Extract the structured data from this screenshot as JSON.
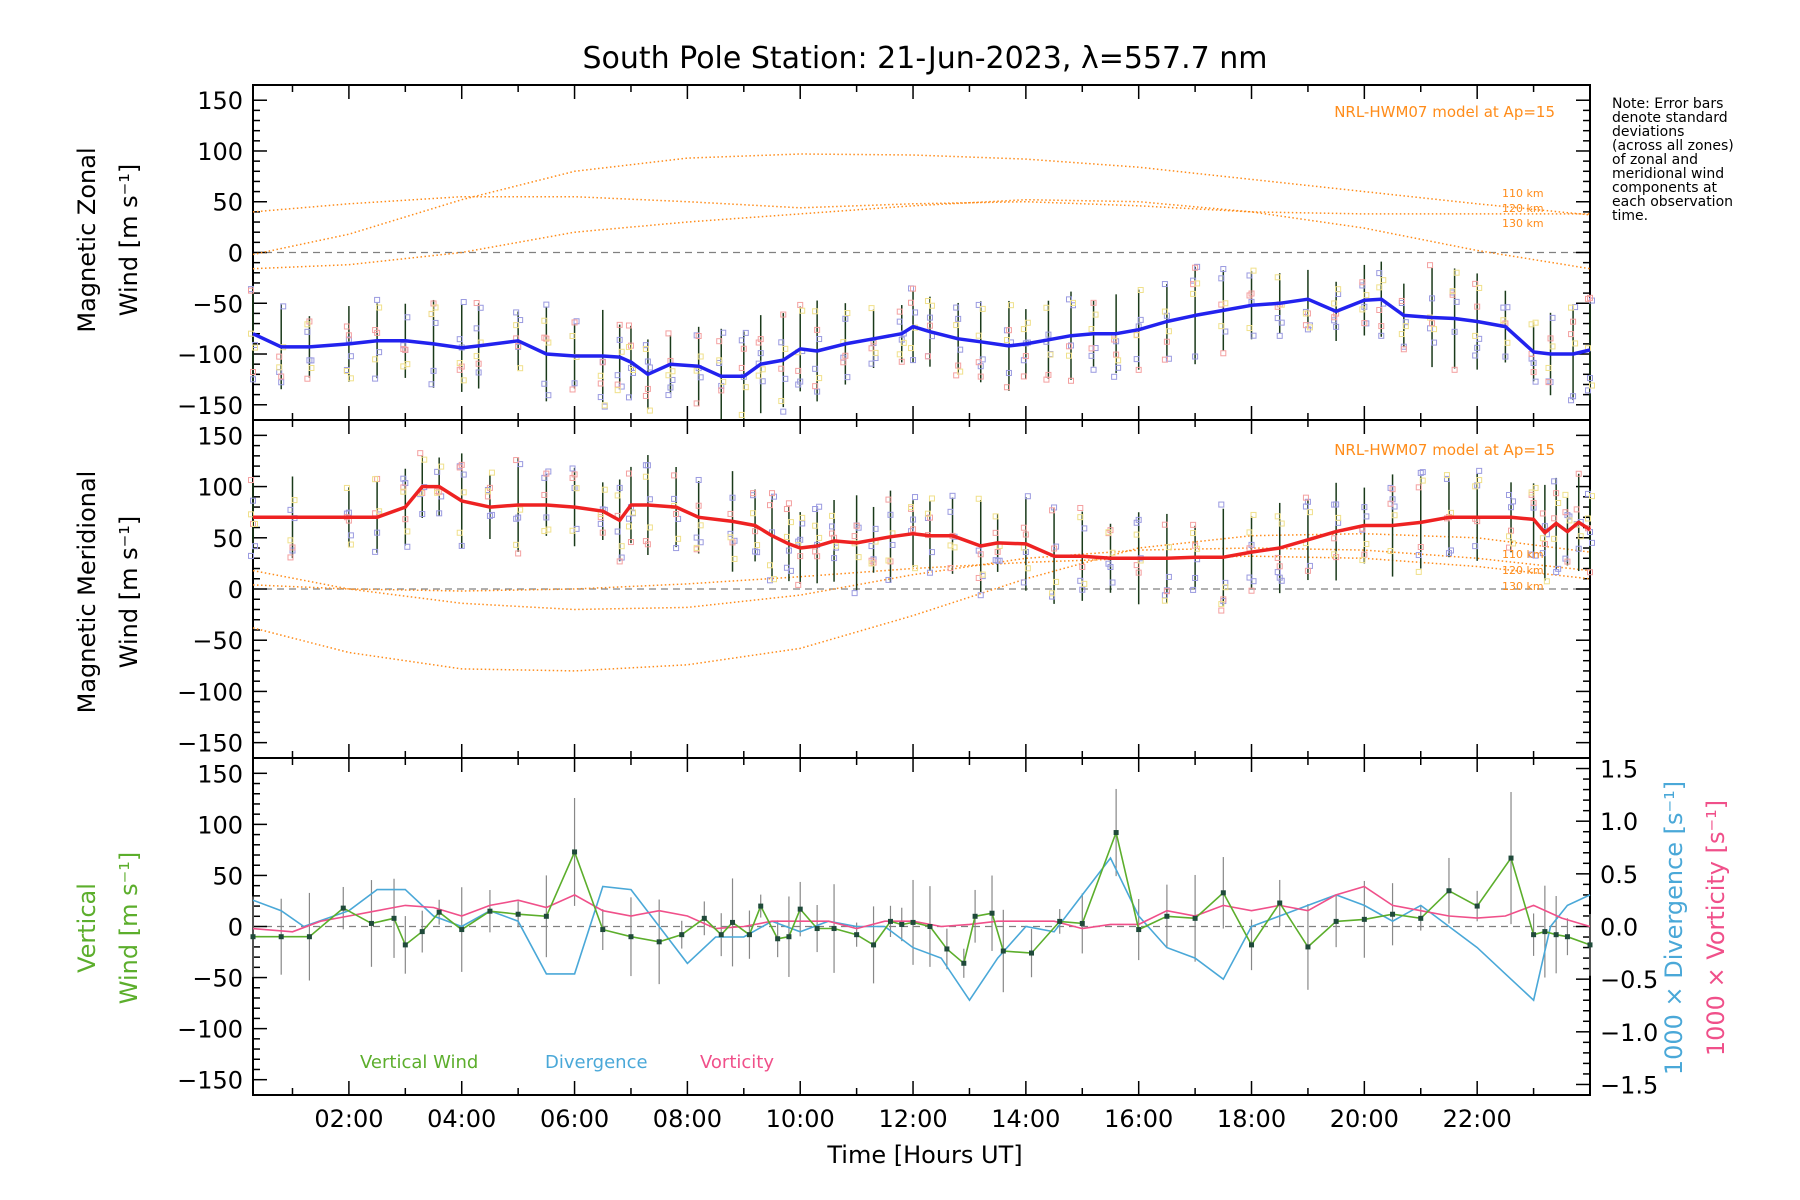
{
  "title": "South Pole Station: 21-Jun-2023, λ=557.7 nm",
  "note": [
    "Note: Error bars",
    "denote standard",
    "deviations",
    "(across all zones)",
    "of zonal and",
    "meridional wind",
    "components at",
    "each observation",
    "time."
  ],
  "colors": {
    "zonal": "#2222ee",
    "meridional": "#ee2222",
    "model": "#ff8c1a",
    "vertical": "#5cae2c",
    "divergence": "#4aa8d8",
    "vorticity": "#f0508a",
    "scatter_blue": "#9a9ae0",
    "scatter_red": "#f4a0a0",
    "scatter_yellow": "#f0e08a",
    "axis": "#000000",
    "zero_line": "#808080"
  },
  "chart_data": [
    {
      "type": "line",
      "panel": "zonal",
      "ylabel_line1": "Magnetic Zonal",
      "ylabel_line2": "Wind [m s⁻¹]",
      "xlim": [
        0.3,
        24.0
      ],
      "ylim": [
        -165,
        165
      ],
      "yticks": [
        -150,
        -100,
        -50,
        0,
        50,
        100,
        150
      ],
      "yticklabels": [
        "−150",
        "−100",
        "−50",
        "0",
        "50",
        "100",
        "150"
      ],
      "model_label": "NRL-HWM07 model at Ap=15",
      "altitude_labels": [
        "110 km",
        "120 km",
        "130 km"
      ],
      "series": [
        {
          "name": "Zonal wind",
          "x": [
            0.3,
            0.8,
            1.3,
            2.0,
            2.5,
            3.0,
            3.5,
            4.0,
            4.3,
            5.0,
            5.5,
            6.0,
            6.5,
            6.8,
            7.0,
            7.3,
            7.7,
            8.2,
            8.6,
            9.0,
            9.3,
            9.7,
            10.0,
            10.3,
            10.8,
            11.3,
            11.8,
            12.0,
            12.3,
            12.8,
            13.2,
            13.7,
            14.0,
            14.4,
            14.8,
            15.2,
            15.6,
            16.0,
            16.5,
            17.0,
            17.5,
            18.0,
            18.5,
            19.0,
            19.5,
            20.0,
            20.3,
            20.7,
            21.2,
            21.6,
            22.0,
            22.5,
            23.0,
            23.3,
            23.7,
            24.0
          ],
          "values": [
            -80,
            -93,
            -93,
            -90,
            -87,
            -87,
            -90,
            -94,
            -92,
            -87,
            -100,
            -102,
            -102,
            -103,
            -108,
            -120,
            -110,
            -112,
            -122,
            -122,
            -110,
            -106,
            -95,
            -97,
            -90,
            -85,
            -80,
            -73,
            -78,
            -85,
            -88,
            -92,
            -90,
            -86,
            -82,
            -80,
            -80,
            -76,
            -68,
            -62,
            -57,
            -52,
            -50,
            -46,
            -58,
            -47,
            -46,
            -62,
            -64,
            -65,
            -68,
            -73,
            -98,
            -100,
            -100,
            -96
          ]
        },
        {
          "name": "Model 110 km",
          "x": [
            0.3,
            2,
            4,
            6,
            8,
            10,
            12,
            14,
            16,
            18,
            20,
            22,
            24
          ],
          "values": [
            -2,
            18,
            52,
            80,
            93,
            97,
            96,
            92,
            84,
            72,
            60,
            48,
            37
          ]
        },
        {
          "name": "Model 120 km",
          "x": [
            0.3,
            2,
            4,
            6,
            8,
            10,
            12,
            14,
            16,
            18,
            20,
            22,
            24
          ],
          "values": [
            40,
            48,
            55,
            55,
            50,
            44,
            48,
            50,
            46,
            40,
            38,
            38,
            38
          ]
        },
        {
          "name": "Model 130 km",
          "x": [
            0.3,
            2,
            4,
            6,
            8,
            10,
            12,
            14,
            16,
            18,
            20,
            22,
            24
          ],
          "values": [
            -16,
            -12,
            0,
            20,
            30,
            38,
            46,
            52,
            50,
            40,
            24,
            2,
            -16
          ]
        }
      ]
    },
    {
      "type": "line",
      "panel": "meridional",
      "ylabel_line1": "Magnetic Meridional",
      "ylabel_line2": "Wind [m s⁻¹]",
      "xlim": [
        0.3,
        24.0
      ],
      "ylim": [
        -165,
        165
      ],
      "yticks": [
        -150,
        -100,
        -50,
        0,
        50,
        100,
        150
      ],
      "yticklabels": [
        "−150",
        "−100",
        "−50",
        "0",
        "50",
        "100",
        "150"
      ],
      "model_label": "NRL-HWM07 model at Ap=15",
      "altitude_labels": [
        "110 km",
        "120 km",
        "130 km"
      ],
      "series": [
        {
          "name": "Meridional wind",
          "x": [
            0.3,
            1.0,
            2.0,
            2.5,
            3.0,
            3.3,
            3.6,
            4.0,
            4.5,
            5.0,
            5.5,
            6.0,
            6.5,
            6.8,
            7.0,
            7.3,
            7.8,
            8.2,
            8.8,
            9.2,
            9.5,
            9.8,
            10.0,
            10.3,
            10.6,
            11.0,
            11.3,
            11.6,
            12.0,
            12.3,
            12.7,
            13.2,
            13.5,
            14.0,
            14.5,
            15.0,
            15.5,
            16.0,
            16.5,
            17.0,
            17.5,
            18.0,
            18.5,
            19.0,
            19.5,
            20.0,
            20.5,
            21.0,
            21.5,
            22.0,
            22.6,
            23.0,
            23.2,
            23.4,
            23.6,
            23.8,
            24.0
          ],
          "values": [
            70,
            70,
            70,
            70,
            80,
            100,
            100,
            86,
            80,
            82,
            82,
            80,
            76,
            67,
            82,
            82,
            80,
            70,
            66,
            62,
            52,
            44,
            40,
            42,
            47,
            45,
            48,
            51,
            54,
            52,
            52,
            42,
            45,
            44,
            32,
            32,
            30,
            30,
            30,
            31,
            31,
            36,
            40,
            48,
            56,
            62,
            62,
            65,
            70,
            70,
            70,
            68,
            55,
            64,
            56,
            65,
            58
          ]
        },
        {
          "name": "Model 110 km",
          "x": [
            0.3,
            2,
            4,
            6,
            8,
            10,
            12,
            14,
            16,
            18,
            20,
            22,
            24
          ],
          "values": [
            -38,
            -62,
            -78,
            -80,
            -74,
            -58,
            -26,
            10,
            40,
            52,
            54,
            50,
            36
          ]
        },
        {
          "name": "Model 120 km",
          "x": [
            0.3,
            2,
            4,
            6,
            8,
            10,
            12,
            14,
            16,
            18,
            20,
            22,
            24
          ],
          "values": [
            18,
            0,
            -14,
            -20,
            -18,
            -6,
            14,
            30,
            38,
            40,
            38,
            30,
            18
          ]
        },
        {
          "name": "Model 130 km",
          "x": [
            0.3,
            2,
            4,
            6,
            8,
            10,
            12,
            14,
            16,
            18,
            20,
            22,
            24
          ],
          "values": [
            4,
            0,
            -2,
            0,
            5,
            12,
            20,
            26,
            30,
            32,
            30,
            22,
            10
          ]
        }
      ]
    },
    {
      "type": "line",
      "panel": "vertical",
      "ylabel_line1": "Vertical",
      "ylabel_line2": "Wind [m s⁻¹]",
      "right_label_1": "1000 × Divergence [s⁻¹]",
      "right_label_2": "1000 × Vorticity [s⁻¹]",
      "xlabel": "Time [Hours UT]",
      "xlim": [
        0.3,
        24.0
      ],
      "xticks": [
        2,
        4,
        6,
        8,
        10,
        12,
        14,
        16,
        18,
        20,
        22
      ],
      "xticklabels": [
        "02:00",
        "04:00",
        "06:00",
        "08:00",
        "10:00",
        "12:00",
        "14:00",
        "16:00",
        "18:00",
        "20:00",
        "22:00"
      ],
      "ylim": [
        -165,
        165
      ],
      "yticks": [
        -150,
        -100,
        -50,
        0,
        50,
        100,
        150
      ],
      "yticklabels": [
        "−150",
        "−100",
        "−50",
        "0",
        "50",
        "100",
        "150"
      ],
      "y2lim": [
        -1.6,
        1.6
      ],
      "y2ticks": [
        -1.5,
        -1.0,
        -0.5,
        0.0,
        0.5,
        1.0,
        1.5
      ],
      "y2ticklabels": [
        "−1.5",
        "−1.0",
        "−0.5",
        "0.0",
        "0.5",
        "1.0",
        "1.5"
      ],
      "legend": [
        "Vertical Wind",
        "Divergence",
        "Vorticity"
      ],
      "series": [
        {
          "name": "Vertical Wind",
          "axis": "left",
          "x": [
            0.3,
            0.8,
            1.3,
            1.9,
            2.4,
            2.8,
            3.0,
            3.3,
            3.6,
            4.0,
            4.5,
            5.0,
            5.5,
            6.0,
            6.5,
            7.0,
            7.5,
            7.9,
            8.3,
            8.6,
            8.8,
            9.1,
            9.3,
            9.6,
            9.8,
            10.0,
            10.3,
            10.6,
            11.0,
            11.3,
            11.6,
            11.8,
            12.0,
            12.3,
            12.6,
            12.9,
            13.1,
            13.4,
            13.6,
            14.1,
            14.6,
            15.0,
            15.6,
            16.0,
            16.5,
            17.0,
            17.5,
            18.0,
            18.5,
            19.0,
            19.5,
            20.0,
            20.5,
            21.0,
            21.5,
            22.0,
            22.6,
            23.0,
            23.2,
            23.4,
            23.6,
            24.0
          ],
          "values": [
            -10,
            -10,
            -10,
            18,
            3,
            8,
            -18,
            -5,
            14,
            -3,
            15,
            12,
            10,
            73,
            -3,
            -10,
            -15,
            -8,
            8,
            -8,
            4,
            -8,
            20,
            -12,
            -10,
            17,
            -2,
            -2,
            -8,
            -18,
            5,
            2,
            4,
            0,
            -22,
            -36,
            10,
            13,
            -24,
            -26,
            5,
            3,
            92,
            -3,
            10,
            8,
            33,
            -18,
            23,
            -20,
            5,
            7,
            12,
            8,
            35,
            20,
            67,
            -8,
            -5,
            -8,
            -10,
            -18
          ]
        },
        {
          "name": "Divergence",
          "axis": "right",
          "x": [
            0.3,
            0.8,
            1.2,
            2.0,
            2.5,
            3.0,
            3.5,
            4.0,
            4.5,
            5.0,
            5.5,
            6.0,
            6.5,
            7.0,
            7.5,
            8.0,
            8.5,
            9.0,
            9.5,
            10.0,
            10.5,
            11.0,
            11.5,
            12.0,
            12.5,
            13.0,
            13.5,
            14.0,
            14.5,
            15.0,
            15.5,
            16.0,
            16.5,
            17.0,
            17.5,
            18.0,
            18.5,
            19.0,
            19.5,
            20.0,
            20.5,
            21.0,
            21.5,
            22.0,
            22.5,
            23.0,
            23.3,
            23.6,
            24.0
          ],
          "values": [
            0.25,
            0.15,
            0.0,
            0.15,
            0.35,
            0.35,
            0.1,
            0.0,
            0.15,
            0.05,
            -0.45,
            -0.45,
            0.38,
            0.35,
            0.0,
            -0.35,
            -0.1,
            -0.1,
            0.05,
            -0.05,
            0.05,
            0.0,
            0.0,
            -0.2,
            -0.3,
            -0.7,
            -0.3,
            0.0,
            -0.05,
            0.3,
            0.65,
            0.1,
            -0.2,
            -0.3,
            -0.5,
            0.0,
            0.1,
            0.2,
            0.3,
            0.2,
            0.05,
            0.2,
            0.0,
            -0.2,
            -0.45,
            -0.7,
            0.0,
            0.2,
            0.3
          ]
        },
        {
          "name": "Vorticity",
          "axis": "right",
          "x": [
            0.3,
            1.0,
            1.5,
            2.0,
            2.5,
            3.0,
            3.5,
            4.0,
            4.5,
            5.0,
            5.5,
            6.0,
            6.5,
            7.0,
            7.5,
            8.0,
            8.5,
            9.0,
            9.5,
            10.0,
            10.5,
            11.0,
            11.5,
            12.0,
            12.5,
            13.0,
            13.5,
            14.0,
            14.5,
            15.0,
            15.5,
            16.0,
            16.5,
            17.0,
            17.5,
            18.0,
            18.5,
            19.0,
            19.5,
            20.0,
            20.5,
            21.0,
            21.5,
            22.0,
            22.5,
            23.0,
            23.5,
            24.0
          ],
          "values": [
            -0.02,
            -0.05,
            0.05,
            0.1,
            0.15,
            0.2,
            0.18,
            0.1,
            0.2,
            0.25,
            0.18,
            0.3,
            0.15,
            0.1,
            0.15,
            0.1,
            -0.02,
            0.0,
            0.05,
            0.05,
            0.05,
            -0.02,
            0.05,
            0.05,
            0.0,
            0.02,
            0.05,
            0.05,
            0.05,
            -0.02,
            0.02,
            0.02,
            0.15,
            0.1,
            0.2,
            0.15,
            0.2,
            0.15,
            0.3,
            0.38,
            0.2,
            0.15,
            0.1,
            0.08,
            0.1,
            0.2,
            0.08,
            0.0
          ]
        }
      ]
    }
  ]
}
